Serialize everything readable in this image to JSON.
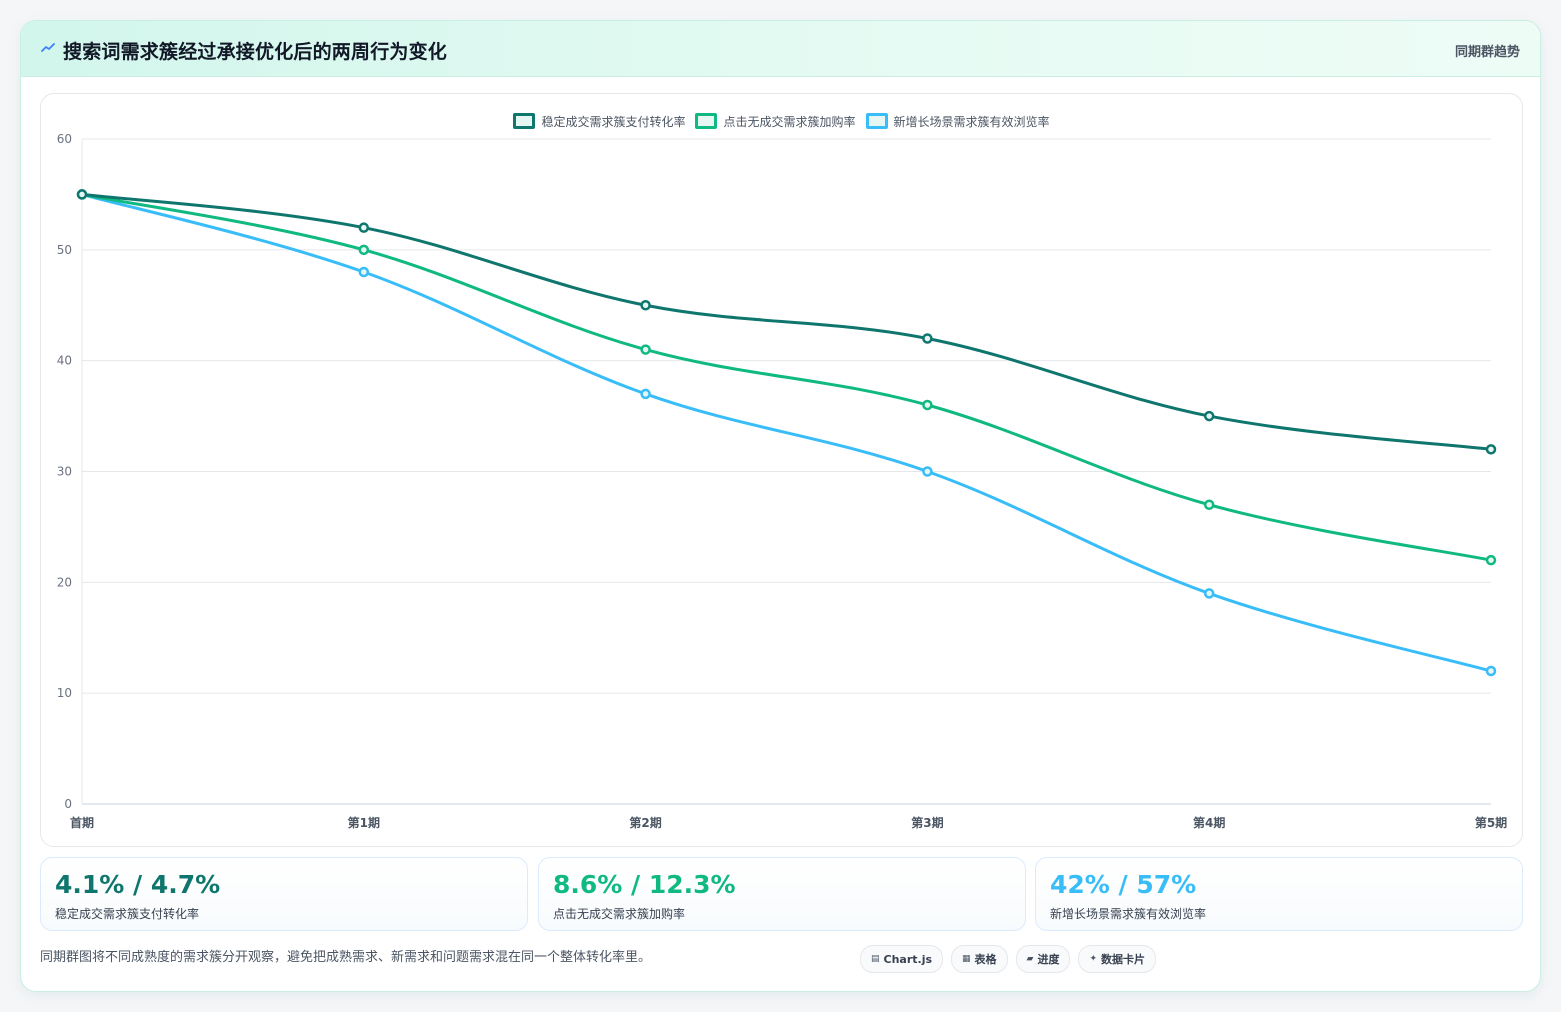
{
  "header": {
    "title": "搜索词需求簇经过承接优化后的两周行为变化",
    "tag": "同期群趋势"
  },
  "colors": {
    "series1": "#0f766e",
    "series2": "#10b981",
    "series3": "#38bdf8",
    "grid": "#e5e7eb",
    "axis": "#6b7280"
  },
  "chart_data": {
    "type": "line",
    "categories": [
      "首期",
      "第1期",
      "第2期",
      "第3期",
      "第4期",
      "第5期"
    ],
    "ylim": [
      0,
      60
    ],
    "yticks": [
      0,
      10,
      20,
      30,
      40,
      50,
      60
    ],
    "grid": true,
    "legend_position": "top-center",
    "series": [
      {
        "name": "稳定成交需求簇支付转化率",
        "color": "#0f766e",
        "values": [
          55,
          52,
          45,
          42,
          35,
          32
        ]
      },
      {
        "name": "点击无成交需求簇加购率",
        "color": "#10b981",
        "values": [
          55,
          50,
          41,
          36,
          27,
          22
        ]
      },
      {
        "name": "新增长场景需求簇有效浏览率",
        "color": "#38bdf8",
        "values": [
          55,
          48,
          37,
          30,
          19,
          12
        ]
      }
    ]
  },
  "stats": [
    {
      "value": "4.1% / 4.7%",
      "label": "稳定成交需求簇支付转化率",
      "color": "#0f766e"
    },
    {
      "value": "8.6% / 12.3%",
      "label": "点击无成交需求簇加购率",
      "color": "#10b981"
    },
    {
      "value": "42% / 57%",
      "label": "新增长场景需求簇有效浏览率",
      "color": "#38bdf8"
    }
  ],
  "footer": {
    "note": "同期群图将不同成熟度的需求簇分开观察，避免把成熟需求、新需求和问题需求混在同一个整体转化率里。",
    "chips": [
      {
        "icon": "chart-icon",
        "glyph": "▤",
        "label": "Chart.js"
      },
      {
        "icon": "table-icon",
        "glyph": "▦",
        "label": "表格"
      },
      {
        "icon": "progress-icon",
        "glyph": "▰",
        "label": "进度"
      },
      {
        "icon": "sparkle-icon",
        "glyph": "✦",
        "label": "数据卡片"
      }
    ]
  }
}
